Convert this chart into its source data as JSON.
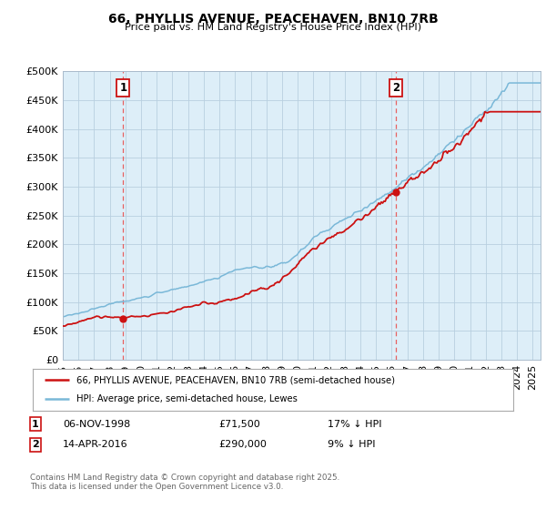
{
  "title": "66, PHYLLIS AVENUE, PEACEHAVEN, BN10 7RB",
  "subtitle": "Price paid vs. HM Land Registry's House Price Index (HPI)",
  "ytick_values": [
    0,
    50000,
    100000,
    150000,
    200000,
    250000,
    300000,
    350000,
    400000,
    450000,
    500000
  ],
  "ylim": [
    0,
    500000
  ],
  "xlim_start": 1995.0,
  "xlim_end": 2025.5,
  "hpi_color": "#7ab8d8",
  "price_color": "#cc1111",
  "vline_color": "#e86060",
  "marker1_x": 1998.85,
  "marker1_y": 71500,
  "marker2_x": 2016.28,
  "marker2_y": 290000,
  "legend_line1": "66, PHYLLIS AVENUE, PEACEHAVEN, BN10 7RB (semi-detached house)",
  "legend_line2": "HPI: Average price, semi-detached house, Lewes",
  "footer": "Contains HM Land Registry data © Crown copyright and database right 2025.\nThis data is licensed under the Open Government Licence v3.0.",
  "background_color": "#ffffff",
  "chart_bg_color": "#ddeef8",
  "grid_color": "#b8cfe0"
}
